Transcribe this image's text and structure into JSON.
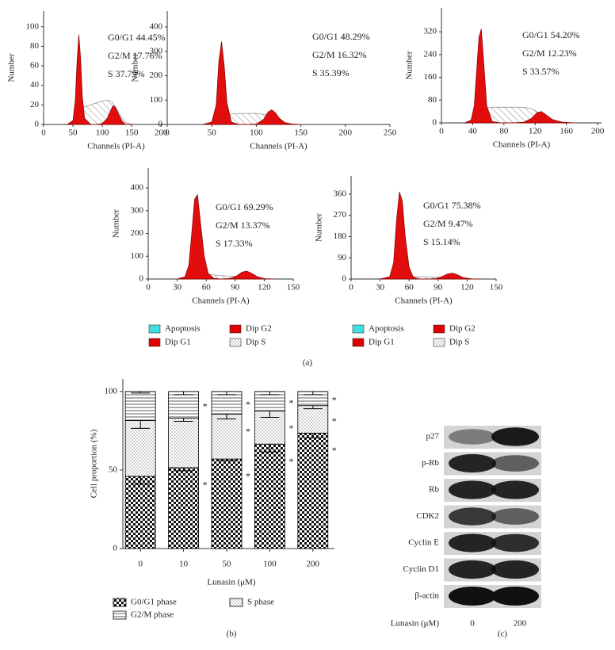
{
  "chart_data": [
    {
      "type": "histogram",
      "xlabel": "Channels (PI-A)",
      "ylabel": "Number",
      "annotations": [
        "G0/G1 44.45%",
        "G2/M 17.76%",
        "S 37.79%"
      ],
      "xlim": [
        0,
        247
      ],
      "ylim": [
        0,
        116
      ],
      "xticks": [
        0,
        50,
        100,
        150,
        200
      ],
      "yticks": [
        0,
        20,
        40,
        60,
        80,
        100
      ],
      "x": [
        40,
        50,
        54,
        57,
        60,
        63,
        66,
        70,
        80,
        90,
        100,
        108,
        114,
        118,
        122,
        128,
        134,
        140,
        150
      ],
      "series": [
        {
          "name": "Dip S",
          "color": "#888888",
          "values": [
            0,
            2,
            6,
            10,
            12,
            14,
            16,
            18,
            20,
            22,
            24,
            25,
            24,
            22,
            18,
            12,
            6,
            2,
            0
          ]
        },
        {
          "name": "Dip G1",
          "color": "#e00000",
          "values": [
            0,
            4,
            25,
            65,
            92,
            68,
            28,
            6,
            0,
            0,
            0,
            0,
            0,
            0,
            0,
            0,
            0,
            0,
            0
          ]
        },
        {
          "name": "Dip G2",
          "color": "#e00000",
          "values": [
            0,
            0,
            0,
            0,
            0,
            0,
            0,
            0,
            0,
            0,
            1,
            6,
            14,
            19,
            18,
            10,
            3,
            0,
            0
          ]
        }
      ]
    },
    {
      "type": "histogram",
      "xlabel": "Channels (PI-A)",
      "ylabel": "Number",
      "annotations": [
        "G0/G1 48.29%",
        "G2/M 16.32%",
        "S 35.39%"
      ],
      "xlim": [
        0,
        250
      ],
      "ylim": [
        0,
        465
      ],
      "xticks": [
        0,
        50,
        100,
        150,
        200,
        250
      ],
      "yticks": [
        0,
        100,
        200,
        300,
        400
      ],
      "x": [
        40,
        50,
        55,
        58,
        61,
        64,
        67,
        72,
        80,
        90,
        100,
        108,
        113,
        117,
        121,
        126,
        132,
        140,
        150
      ],
      "series": [
        {
          "name": "Dip S",
          "color": "#888888",
          "values": [
            0,
            5,
            20,
            30,
            35,
            38,
            40,
            42,
            45,
            45,
            45,
            42,
            38,
            30,
            22,
            12,
            5,
            0,
            0
          ]
        },
        {
          "name": "Dip G1",
          "color": "#e00000",
          "values": [
            0,
            10,
            80,
            260,
            340,
            240,
            90,
            10,
            0,
            0,
            0,
            0,
            0,
            0,
            0,
            0,
            0,
            0,
            0
          ]
        },
        {
          "name": "Dip G2",
          "color": "#e00000",
          "values": [
            0,
            0,
            0,
            0,
            0,
            0,
            0,
            0,
            0,
            0,
            2,
            20,
            50,
            60,
            50,
            25,
            8,
            2,
            0
          ]
        }
      ]
    },
    {
      "type": "histogram",
      "xlabel": "Channels (PI-A)",
      "ylabel": "Number",
      "annotations": [
        "G0/G1 54.20%",
        "G2/M 12.23%",
        "S 33.57%"
      ],
      "xlim": [
        0,
        205
      ],
      "ylim": [
        0,
        404
      ],
      "xticks": [
        0,
        40,
        80,
        120,
        160,
        200
      ],
      "yticks": [
        0,
        80,
        160,
        240,
        320
      ],
      "x": [
        30,
        38,
        42,
        45,
        48,
        51,
        54,
        58,
        65,
        75,
        90,
        105,
        115,
        122,
        128,
        134,
        142,
        155,
        170
      ],
      "series": [
        {
          "name": "Dip S",
          "color": "#888888",
          "values": [
            0,
            5,
            15,
            30,
            40,
            45,
            50,
            52,
            55,
            55,
            55,
            55,
            50,
            40,
            30,
            20,
            10,
            3,
            0
          ]
        },
        {
          "name": "Dip G1",
          "color": "#e00000",
          "values": [
            0,
            10,
            60,
            180,
            300,
            330,
            220,
            60,
            5,
            0,
            0,
            0,
            0,
            0,
            0,
            0,
            0,
            0,
            0
          ]
        },
        {
          "name": "Dip G2",
          "color": "#e00000",
          "values": [
            0,
            0,
            0,
            0,
            0,
            0,
            0,
            0,
            0,
            0,
            0,
            2,
            15,
            35,
            40,
            28,
            12,
            2,
            0
          ]
        }
      ]
    },
    {
      "type": "histogram",
      "xlabel": "Channels (PI-A)",
      "ylabel": "Number",
      "annotations": [
        "G0/G1 69.29%",
        "G2/M 13.37%",
        "S 17.33%"
      ],
      "xlim": [
        0,
        150
      ],
      "ylim": [
        0,
        487
      ],
      "xticks": [
        0,
        30,
        60,
        90,
        120,
        150
      ],
      "yticks": [
        0,
        100,
        200,
        300,
        400
      ],
      "x": [
        30,
        38,
        42,
        45,
        48,
        51,
        54,
        58,
        62,
        68,
        75,
        85,
        92,
        97,
        102,
        107,
        113,
        120,
        130
      ],
      "series": [
        {
          "name": "Dip S",
          "color": "#888888",
          "values": [
            0,
            2,
            6,
            10,
            14,
            16,
            18,
            20,
            20,
            18,
            15,
            12,
            10,
            8,
            6,
            4,
            2,
            0,
            0
          ]
        },
        {
          "name": "Dip G1",
          "color": "#e00000",
          "values": [
            0,
            10,
            60,
            200,
            350,
            370,
            250,
            100,
            25,
            3,
            0,
            0,
            0,
            0,
            0,
            0,
            0,
            0,
            0
          ]
        },
        {
          "name": "Dip G2",
          "color": "#e00000",
          "values": [
            0,
            0,
            0,
            0,
            0,
            0,
            0,
            0,
            0,
            0,
            0,
            3,
            15,
            30,
            35,
            25,
            10,
            2,
            0
          ]
        }
      ]
    },
    {
      "type": "histogram",
      "xlabel": "Channels (PI-A)",
      "ylabel": "Number",
      "annotations": [
        "G0/G1 75.38%",
        "G2/M 9.47%",
        "S 15.14%"
      ],
      "xlim": [
        0,
        150
      ],
      "ylim": [
        0,
        437
      ],
      "xticks": [
        0,
        30,
        60,
        90,
        120,
        150
      ],
      "yticks": [
        0,
        90,
        180,
        270,
        360
      ],
      "x": [
        30,
        40,
        44,
        47,
        50,
        53,
        56,
        60,
        64,
        70,
        78,
        88,
        95,
        100,
        105,
        110,
        116,
        125,
        135
      ],
      "series": [
        {
          "name": "Dip S",
          "color": "#888888",
          "values": [
            0,
            2,
            5,
            8,
            10,
            12,
            12,
            12,
            11,
            10,
            9,
            8,
            7,
            6,
            5,
            4,
            2,
            0,
            0
          ]
        },
        {
          "name": "Dip G1",
          "color": "#e00000",
          "values": [
            0,
            10,
            70,
            250,
            370,
            330,
            180,
            50,
            10,
            0,
            0,
            0,
            0,
            0,
            0,
            0,
            0,
            0,
            0
          ]
        },
        {
          "name": "Dip G2",
          "color": "#e00000",
          "values": [
            0,
            0,
            0,
            0,
            0,
            0,
            0,
            0,
            0,
            0,
            0,
            2,
            12,
            22,
            25,
            18,
            6,
            1,
            0
          ]
        }
      ]
    },
    {
      "type": "stacked-bar",
      "xlabel": "Lunasin (μM)",
      "ylabel": "Cell proportion (%)",
      "categories": [
        "0",
        "10",
        "50",
        "100",
        "200"
      ],
      "ylim": [
        0,
        108
      ],
      "yticks": [
        0,
        50,
        100
      ],
      "series": [
        {
          "name": "G0/G1 phase",
          "color": "#000000",
          "pattern": "checker",
          "values": [
            46,
            51.5,
            57,
            66.5,
            73.5
          ],
          "errors": [
            5,
            2,
            1,
            5,
            3
          ],
          "annotations": [
            null,
            "*",
            "*",
            "*",
            "*"
          ]
        },
        {
          "name": "S phase",
          "color": "#000000",
          "pattern": "dots",
          "values": [
            35.5,
            31.5,
            28.5,
            21,
            17.5
          ],
          "errors": [
            5,
            2,
            3,
            4,
            2
          ],
          "annotations": [
            null,
            null,
            "*",
            "*",
            "*"
          ]
        },
        {
          "name": "G2/M phase",
          "color": "#000000",
          "pattern": "hlines",
          "values": [
            18.5,
            17,
            14.5,
            12.5,
            9
          ],
          "errors": [
            1,
            2,
            2,
            2,
            2
          ],
          "annotations": [
            null,
            "*",
            "*",
            "*",
            "*"
          ]
        }
      ]
    }
  ],
  "histogram_legends": [
    {
      "items": [
        {
          "name": "Apoptosis",
          "color": "#40e0e0"
        },
        {
          "name": "Dip G1",
          "color": "#e00000"
        },
        {
          "name": "Dip G2",
          "color": "#e00000"
        },
        {
          "name": "Dip S",
          "color": "#888888",
          "pattern": "dots"
        }
      ]
    },
    {
      "items": [
        {
          "name": "Apoptosis",
          "color": "#40e0e0"
        },
        {
          "name": "Dip G1",
          "color": "#e00000"
        },
        {
          "name": "Dip G2",
          "color": "#e00000"
        },
        {
          "name": "Dip S",
          "color": "#888888",
          "pattern": "dots"
        }
      ]
    }
  ],
  "blot": {
    "rows": [
      "p27",
      "p-Rb",
      "Rb",
      "CDK2",
      "Cyclin E",
      "Cyclin D1",
      "β-actin"
    ],
    "xlabel": "Lunasin (μM)",
    "lanes": [
      "0",
      "200"
    ]
  },
  "panel_labels": [
    "(a)",
    "(b)",
    "(c)"
  ]
}
